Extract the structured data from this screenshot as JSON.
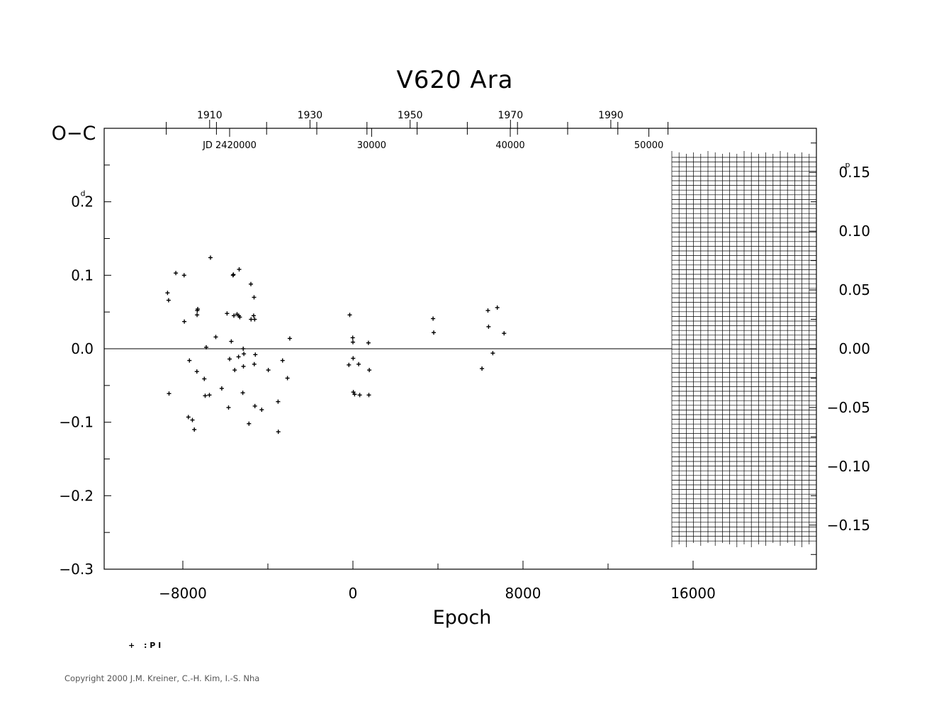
{
  "chart_data": {
    "type": "scatter",
    "title": "V620  Ara",
    "xlabel": "Epoch",
    "ylabel": "O−C",
    "ylabel_unit": "d",
    "right_axis_unit": "p",
    "xlim": [
      -11700,
      21800
    ],
    "ylim": [
      -0.3,
      0.3
    ],
    "right_ylim": [
      -0.1875,
      0.1875
    ],
    "x_ticks": [
      {
        "value": -8000,
        "label": "−8000"
      },
      {
        "value": 0,
        "label": "0"
      },
      {
        "value": 8000,
        "label": "8000"
      },
      {
        "value": 16000,
        "label": "16000"
      }
    ],
    "y_ticks": [
      {
        "value": 0.2,
        "label": "0.2",
        "superscript": "d"
      },
      {
        "value": 0.1,
        "label": "0.1"
      },
      {
        "value": 0.0,
        "label": "0.0"
      },
      {
        "value": -0.1,
        "label": "−0.1"
      },
      {
        "value": -0.2,
        "label": "−0.2"
      },
      {
        "value": -0.3,
        "label": "−0.3"
      }
    ],
    "right_ticks": [
      {
        "value": 0.15,
        "label": "0.15",
        "superscript": "p"
      },
      {
        "value": 0.1,
        "label": "0.10"
      },
      {
        "value": 0.05,
        "label": "0.05"
      },
      {
        "value": 0.0,
        "label": "0.00"
      },
      {
        "value": -0.05,
        "label": "−0.05"
      },
      {
        "value": -0.1,
        "label": "−0.10"
      },
      {
        "value": -0.15,
        "label": "−0.15"
      }
    ],
    "top_year_labels": [
      {
        "year": 1910,
        "epoch": -6740
      },
      {
        "year": 1930,
        "epoch": -2020
      },
      {
        "year": 1950,
        "epoch": 2690
      },
      {
        "year": 1970,
        "epoch": 7410
      },
      {
        "year": 1990,
        "epoch": 12130
      }
    ],
    "top_jd_labels": [
      {
        "text": "JD  2420000",
        "epoch": -5800
      },
      {
        "text": "30000",
        "epoch": 880
      },
      {
        "text": "40000",
        "epoch": 7400
      },
      {
        "text": "50000",
        "epoch": 13920
      }
    ],
    "top_minor_years_epoch": [
      -8780,
      -6420,
      -4060,
      -1700,
      660,
      3020,
      5380,
      7740,
      10100,
      12460,
      14820
    ],
    "series": [
      {
        "name": "P I",
        "marker": "+",
        "points": [
          [
            -8720,
            0.076
          ],
          [
            -8670,
            0.066
          ],
          [
            -8650,
            -0.061
          ],
          [
            -8330,
            0.103
          ],
          [
            -7940,
            0.1
          ],
          [
            -7930,
            0.037
          ],
          [
            -7740,
            -0.093
          ],
          [
            -7690,
            -0.016
          ],
          [
            -7550,
            -0.097
          ],
          [
            -7460,
            -0.11
          ],
          [
            -7340,
            -0.031
          ],
          [
            -7330,
            0.046
          ],
          [
            -7320,
            0.052
          ],
          [
            -7300,
            0.054
          ],
          [
            -6990,
            -0.041
          ],
          [
            -6950,
            -0.064
          ],
          [
            -6900,
            0.002
          ],
          [
            -6750,
            -0.063
          ],
          [
            -6700,
            0.124
          ],
          [
            -6450,
            0.016
          ],
          [
            -6170,
            -0.054
          ],
          [
            -5920,
            0.048
          ],
          [
            -5850,
            -0.08
          ],
          [
            -5800,
            -0.014
          ],
          [
            -5720,
            0.01
          ],
          [
            -5640,
            0.1
          ],
          [
            -5620,
            0.101
          ],
          [
            -5600,
            0.045
          ],
          [
            -5560,
            -0.029
          ],
          [
            -5450,
            0.047
          ],
          [
            -5380,
            -0.011
          ],
          [
            -5370,
            0.045
          ],
          [
            -5350,
            0.108
          ],
          [
            -5320,
            0.043
          ],
          [
            -5180,
            -0.06
          ],
          [
            -5160,
            0.0
          ],
          [
            -5150,
            -0.024
          ],
          [
            -5130,
            -0.007
          ],
          [
            -4890,
            -0.102
          ],
          [
            -4800,
            0.088
          ],
          [
            -4790,
            0.04
          ],
          [
            -4670,
            0.045
          ],
          [
            -4650,
            0.07
          ],
          [
            -4640,
            -0.021
          ],
          [
            -4620,
            0.04
          ],
          [
            -4610,
            -0.078
          ],
          [
            -4590,
            -0.008
          ],
          [
            -4290,
            -0.083
          ],
          [
            -3980,
            -0.029
          ],
          [
            -3520,
            -0.072
          ],
          [
            -3510,
            -0.113
          ],
          [
            -3310,
            -0.016
          ],
          [
            -3080,
            -0.04
          ],
          [
            -2970,
            0.014
          ],
          [
            -190,
            -0.022
          ],
          [
            -150,
            0.046
          ],
          [
            -10,
            0.015
          ],
          [
            0,
            0.009
          ],
          [
            10,
            -0.013
          ],
          [
            20,
            -0.059
          ],
          [
            80,
            -0.062
          ],
          [
            270,
            -0.021
          ],
          [
            320,
            -0.063
          ],
          [
            730,
            0.008
          ],
          [
            750,
            -0.063
          ],
          [
            770,
            -0.029
          ],
          [
            3770,
            0.041
          ],
          [
            3800,
            0.022
          ],
          [
            6070,
            -0.027
          ],
          [
            6350,
            0.052
          ],
          [
            6380,
            0.03
          ],
          [
            6580,
            -0.006
          ],
          [
            6790,
            0.056
          ],
          [
            7110,
            0.021
          ]
        ]
      }
    ],
    "zero_line": 0.0
  },
  "labels": {
    "yaxis_big": "O−C",
    "legend_symbol": "+",
    "legend_text": ": P I",
    "copyright": "Copyright 2000 J.M. Kreiner, C.-H. Kim, I.-S. Nha"
  }
}
